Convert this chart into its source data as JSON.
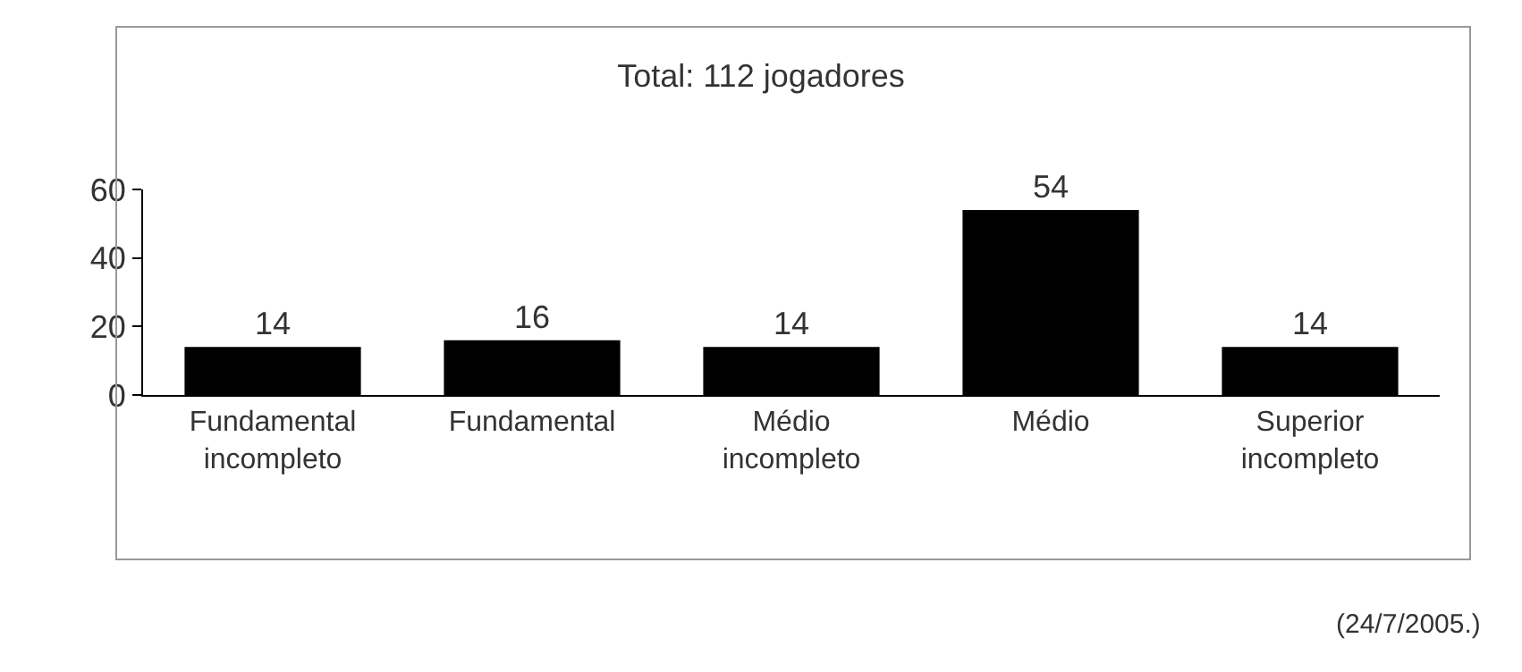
{
  "chart_data": {
    "type": "bar",
    "title": "Total: 112 jogadores",
    "categories": [
      "Fundamental\nincompleto",
      "Fundamental",
      "Médio\nincompleto",
      "Médio",
      "Superior\nincompleto"
    ],
    "values": [
      14,
      16,
      14,
      54,
      14
    ],
    "color": "#000000",
    "ylim": [
      0,
      60
    ],
    "yticks": [
      0,
      20,
      40,
      60
    ],
    "data_labels": true,
    "annotations": [
      "(24/7/2005.)"
    ]
  }
}
